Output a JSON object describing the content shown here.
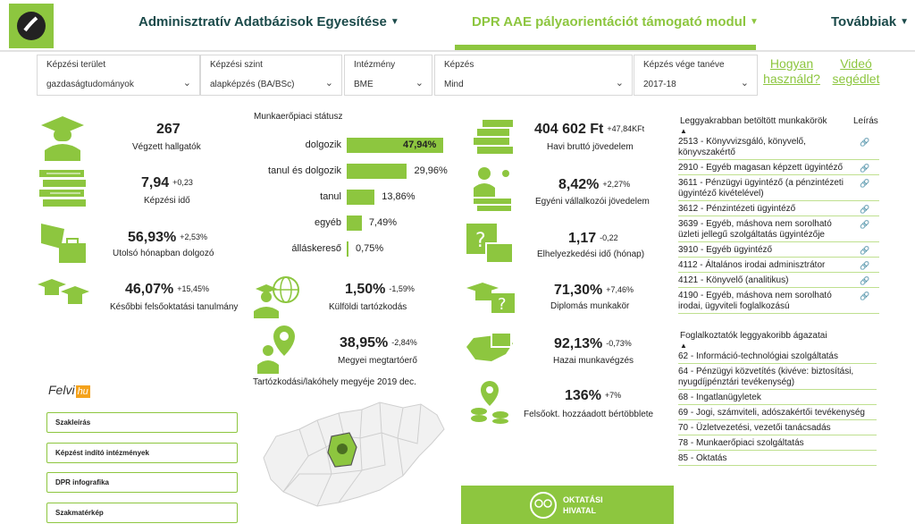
{
  "header": {
    "nav1": "Adminisztratív Adatbázisok Egyesítése",
    "nav2": "DPR AAE pályaorientációt támogató modul",
    "nav3": "Továbbiak"
  },
  "filters": [
    {
      "label": "Képzési terület",
      "value": "gazdaságtudományok"
    },
    {
      "label": "Képzési szint",
      "value": "alapképzés (BA/BSc)"
    },
    {
      "label": "Intézmény",
      "value": "BME"
    },
    {
      "label": "Képzés",
      "value": "Mind"
    },
    {
      "label": "Képzés vége tanéve",
      "value": "2017-18"
    }
  ],
  "links": {
    "howto": "Hogyan használd?",
    "video": "Videó segédlet"
  },
  "left_kpis": [
    {
      "value": "267",
      "delta": "",
      "label": "Végzett hallgatók",
      "icon": "graduate-icon"
    },
    {
      "value": "7,94",
      "delta": "+0,23",
      "label": "Képzési idő",
      "icon": "books-icon"
    },
    {
      "value": "56,93%",
      "delta": "+2,53%",
      "label": "Utolsó hónapban dolgozó",
      "icon": "flag-briefcase-icon"
    },
    {
      "value": "46,07%",
      "delta": "+15,45%",
      "label": "Későbbi felsőoktatási tanulmány",
      "icon": "graduation-caps-icon"
    }
  ],
  "mid_kpis": [
    {
      "value": "1,50%",
      "delta": "-1,59%",
      "label": "Külföldi tartózkodás",
      "icon": "globe-person-icon"
    },
    {
      "value": "38,95%",
      "delta": "-2,84%",
      "label": "Megyei megtartóerő",
      "icon": "location-person-icon"
    }
  ],
  "right_kpis": [
    {
      "value": "404 602 Ft",
      "delta": "+47,84KFt",
      "label": "Havi bruttó jövedelem",
      "icon": "money-stack-icon"
    },
    {
      "value": "8,42%",
      "delta": "+2,27%",
      "label": "Egyéni vállalkozói jövedelem",
      "icon": "entrepreneur-icon"
    },
    {
      "value": "1,17",
      "delta": "-0,22",
      "label": "Elhelyezkedési idő (hónap)",
      "icon": "calendar-briefcase-icon"
    },
    {
      "value": "71,30%",
      "delta": "+7,46%",
      "label": "Diplomás munkakör",
      "icon": "cap-question-icon"
    },
    {
      "value": "92,13%",
      "delta": "-0,73%",
      "label": "Hazai munkavégzés",
      "icon": "hungary-briefcase-icon"
    },
    {
      "value": "136%",
      "delta": "+7%",
      "label": "Felsőokt. hozzáadott bértöbblete",
      "icon": "coins-pin-icon"
    }
  ],
  "chart_data": {
    "type": "bar",
    "title": "Munkaerőpiaci státusz",
    "categories": [
      "dolgozik",
      "tanul és dolgozik",
      "tanul",
      "egyéb",
      "álláskereső"
    ],
    "values": [
      47.94,
      29.96,
      13.86,
      7.49,
      0.75
    ],
    "labels": [
      "47,94%",
      "29,96%",
      "13,86%",
      "7,49%",
      "0,75%"
    ],
    "color": "#8dc63f"
  },
  "map": {
    "caption": "Tartózkodási/lakóhely megyéje 2019 dec."
  },
  "jobs": {
    "title": "Leggyakrabban betöltött munkakörök",
    "col2": "Leírás",
    "rows": [
      [
        "2513 - Könyvvizsgáló, könyvelő,",
        "könyvszakértő"
      ],
      [
        "2910 - Egyéb magasan képzett ügyintéző",
        ""
      ],
      [
        "3611 - Pénzügyi ügyintéző (a pénzintézeti",
        "ügyintéző kivételével)"
      ],
      [
        "3612 - Pénzintézeti ügyintéző",
        ""
      ],
      [
        "3639 - Egyéb, máshova nem sorolható",
        "üzleti jellegű szolgáltatás ügyintézője"
      ],
      [
        "3910 - Egyéb ügyintéző",
        ""
      ],
      [
        "4112 - Általános irodai adminisztrátor",
        ""
      ],
      [
        "4121 - Könyvelő (analitikus)",
        ""
      ],
      [
        "4190 - Egyéb, máshova nem sorolható",
        "irodai, ügyviteli foglalkozású"
      ]
    ]
  },
  "sectors": {
    "title": "Foglalkoztatók leggyakoribb ágazatai",
    "rows": [
      [
        "62 - Információ-technológiai szolgáltatás",
        ""
      ],
      [
        "64 - Pénzügyi közvetítés (kivéve: biztosítási,",
        "nyugdíjpénztári tevékenység)"
      ],
      [
        "68 - Ingatlanügyletek",
        ""
      ],
      [
        "69 - Jogi, számviteli, adószakértői tevékenység",
        ""
      ],
      [
        "70 - Üzletvezetési, vezetői tanácsadás",
        ""
      ],
      [
        "78 - Munkaerőpiaci szolgáltatás",
        ""
      ],
      [
        "85 - Oktatás",
        ""
      ]
    ]
  },
  "felvi": {
    "text1": "Felvi",
    "text2": "hu"
  },
  "side_buttons": [
    "Szakleírás",
    "Képzést indító intézmények",
    "DPR infografika",
    "Szakmatérkép"
  ],
  "oh_logo": {
    "line1": "OKTATÁSI",
    "line2": "HIVATAL"
  },
  "colors": {
    "accent": "#8dc63f",
    "nav": "#1b4a4a"
  }
}
